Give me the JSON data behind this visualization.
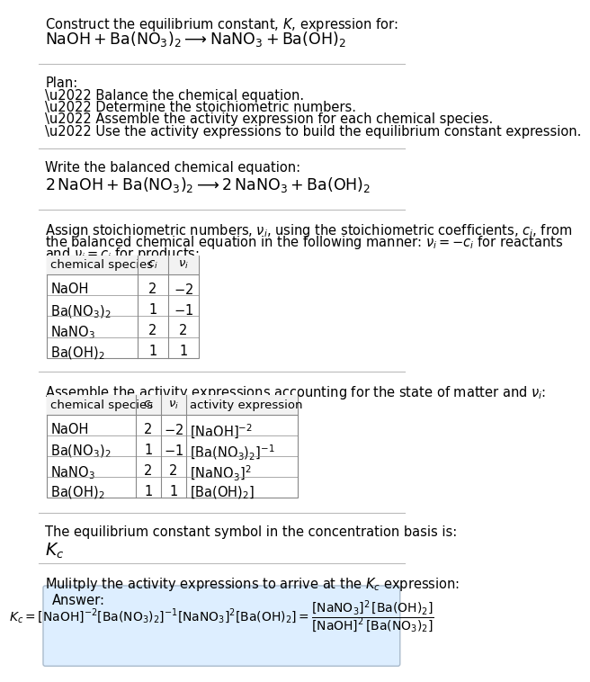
{
  "title_line1": "Construct the equilibrium constant, $K$, expression for:",
  "title_line2": "$\\mathrm{NaOH + Ba(NO_3)_2 \\longrightarrow NaNO_3 + Ba(OH)_2}$",
  "plan_header": "Plan:",
  "plan_items": [
    "\\u2022 Balance the chemical equation.",
    "\\u2022 Determine the stoichiometric numbers.",
    "\\u2022 Assemble the activity expression for each chemical species.",
    "\\u2022 Use the activity expressions to build the equilibrium constant expression."
  ],
  "balanced_header": "Write the balanced chemical equation:",
  "balanced_eq": "$\\mathrm{2\\,NaOH + Ba(NO_3)_2 \\longrightarrow 2\\,NaNO_3 + Ba(OH)_2}$",
  "stoich_intro1": "Assign stoichiometric numbers, $\\nu_i$, using the stoichiometric coefficients, $c_i$, from",
  "stoich_intro2": "the balanced chemical equation in the following manner: $\\nu_i = -c_i$ for reactants",
  "stoich_intro3": "and $\\nu_i = c_i$ for products:",
  "table1_headers": [
    "chemical species",
    "$c_i$",
    "$\\nu_i$"
  ],
  "table1_rows": [
    [
      "NaOH",
      "2",
      "$-2$"
    ],
    [
      "$\\mathrm{Ba(NO_3)_2}$",
      "1",
      "$-1$"
    ],
    [
      "$\\mathrm{NaNO_3}$",
      "2",
      "2"
    ],
    [
      "$\\mathrm{Ba(OH)_2}$",
      "1",
      "1"
    ]
  ],
  "activity_intro": "Assemble the activity expressions accounting for the state of matter and $\\nu_i$:",
  "table2_headers": [
    "chemical species",
    "$c_i$",
    "$\\nu_i$",
    "activity expression"
  ],
  "table2_rows": [
    [
      "NaOH",
      "2",
      "$-2$",
      "$[\\mathrm{NaOH}]^{-2}$"
    ],
    [
      "$\\mathrm{Ba(NO_3)_2}$",
      "1",
      "$-1$",
      "$[\\mathrm{Ba(NO_3)_2}]^{-1}$"
    ],
    [
      "$\\mathrm{NaNO_3}$",
      "2",
      "2",
      "$[\\mathrm{NaNO_3}]^{2}$"
    ],
    [
      "$\\mathrm{Ba(OH)_2}$",
      "1",
      "1",
      "$[\\mathrm{Ba(OH)_2}]$"
    ]
  ],
  "kc_intro": "The equilibrium constant symbol in the concentration basis is:",
  "kc_symbol": "$K_c$",
  "multiply_intro": "Mulitply the activity expressions to arrive at the $K_c$ expression:",
  "answer_label": "Answer:",
  "bg_color": "#ffffff",
  "answer_box_color": "#ddeeff",
  "answer_box_edge": "#aabbcc",
  "text_color": "#000000",
  "separator_color": "#bbbbbb",
  "table_border_color": "#888888",
  "font_size": 10.5,
  "font_size_eq": 12.5
}
